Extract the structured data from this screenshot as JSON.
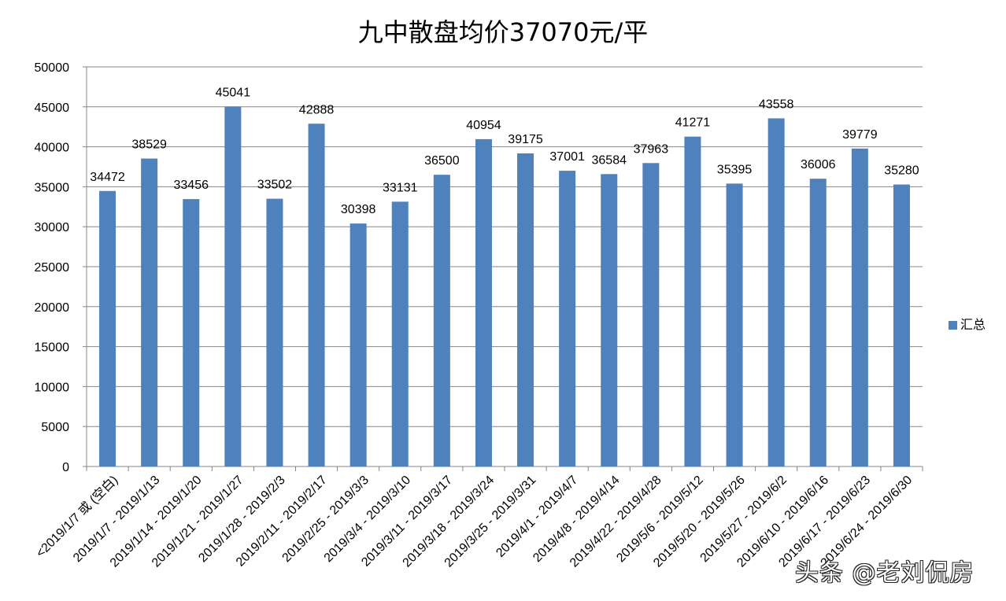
{
  "chart_data": {
    "type": "bar",
    "title": "九中散盘均价37070元/平",
    "xlabel": "",
    "ylabel": "",
    "ylim": [
      0,
      50000
    ],
    "yticks": [
      0,
      5000,
      10000,
      15000,
      20000,
      25000,
      30000,
      35000,
      40000,
      45000,
      50000
    ],
    "grid": "horizontal",
    "legend_position": "right",
    "bar_color": "#4F81BD",
    "categories": [
      "<2019/1/7 或 (空白)",
      "2019/1/7 - 2019/1/13",
      "2019/1/14 - 2019/1/20",
      "2019/1/21 - 2019/1/27",
      "2019/1/28 - 2019/2/3",
      "2019/2/11 - 2019/2/17",
      "2019/2/25 - 2019/3/3",
      "2019/3/4 - 2019/3/10",
      "2019/3/11 - 2019/3/17",
      "2019/3/18 - 2019/3/24",
      "2019/3/25 - 2019/3/31",
      "2019/4/1 - 2019/4/7",
      "2019/4/8 - 2019/4/14",
      "2019/4/22 - 2019/4/28",
      "2019/5/6 - 2019/5/12",
      "2019/5/20 - 2019/5/26",
      "2019/5/27 - 2019/6/2",
      "2019/6/10 - 2019/6/16",
      "2019/6/17 - 2019/6/23",
      "2019/6/24 - 2019/6/30"
    ],
    "series": [
      {
        "name": "汇总",
        "values": [
          34472,
          38529,
          33456,
          45041,
          33502,
          42888,
          30398,
          33131,
          36500,
          40954,
          39175,
          37001,
          36584,
          37963,
          41271,
          35395,
          43558,
          36006,
          39779,
          35280
        ]
      }
    ]
  },
  "watermark": "头条 @老刘侃房"
}
